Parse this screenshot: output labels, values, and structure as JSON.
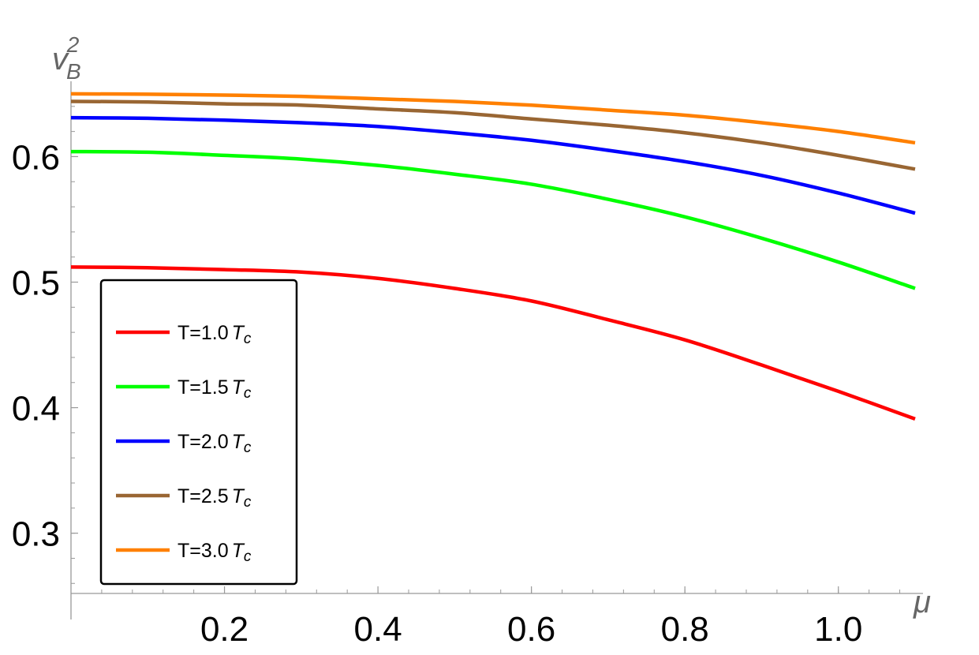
{
  "chart_data": {
    "type": "line",
    "title": "",
    "xlabel": "μ",
    "ylabel": {
      "base": "v",
      "subscript": "B",
      "superscript": "2"
    },
    "xlim": [
      0,
      1.1
    ],
    "ylim": [
      0.252,
      0.66
    ],
    "x_ticks": [
      0.2,
      0.4,
      0.6,
      0.8,
      1.0
    ],
    "x_tick_labels": [
      "0.2",
      "0.4",
      "0.6",
      "0.8",
      "1.0"
    ],
    "y_ticks": [
      0.3,
      0.4,
      0.5,
      0.6
    ],
    "y_tick_labels": [
      "0.3",
      "0.4",
      "0.5",
      "0.6"
    ],
    "grid": false,
    "legend_placement": "bottom-left",
    "x": [
      0,
      0.1,
      0.2,
      0.3,
      0.4,
      0.5,
      0.6,
      0.7,
      0.8,
      0.9,
      1.0,
      1.1
    ],
    "series": [
      {
        "name": "T=1.0T_c",
        "label_main": "T=1.0",
        "label_var": "T",
        "label_sub": "c",
        "color": "#ff0000",
        "values": [
          0.512,
          0.5115,
          0.51,
          0.508,
          0.503,
          0.495,
          0.485,
          0.47,
          0.454,
          0.434,
          0.413,
          0.391
        ]
      },
      {
        "name": "T=1.5T_c",
        "label_main": "T=1.5",
        "label_var": "T",
        "label_sub": "c",
        "color": "#00ff00",
        "values": [
          0.604,
          0.6035,
          0.601,
          0.598,
          0.593,
          0.586,
          0.578,
          0.566,
          0.552,
          0.535,
          0.516,
          0.495
        ]
      },
      {
        "name": "T=2.0T_c",
        "label_main": "T=2.0",
        "label_var": "T",
        "label_sub": "c",
        "color": "#0000ff",
        "values": [
          0.631,
          0.6305,
          0.629,
          0.627,
          0.624,
          0.619,
          0.613,
          0.605,
          0.596,
          0.585,
          0.571,
          0.555
        ]
      },
      {
        "name": "T=2.5T_c",
        "label_main": "T=2.5",
        "label_var": "T",
        "label_sub": "c",
        "color": "#996633",
        "values": [
          0.644,
          0.6435,
          0.642,
          0.641,
          0.638,
          0.635,
          0.63,
          0.625,
          0.619,
          0.611,
          0.601,
          0.59
        ]
      },
      {
        "name": "T=3.0T_c",
        "label_main": "T=3.0",
        "label_var": "T",
        "label_sub": "c",
        "color": "#ff8000",
        "values": [
          0.65,
          0.6497,
          0.649,
          0.648,
          0.646,
          0.644,
          0.641,
          0.637,
          0.633,
          0.627,
          0.62,
          0.611
        ]
      }
    ]
  }
}
